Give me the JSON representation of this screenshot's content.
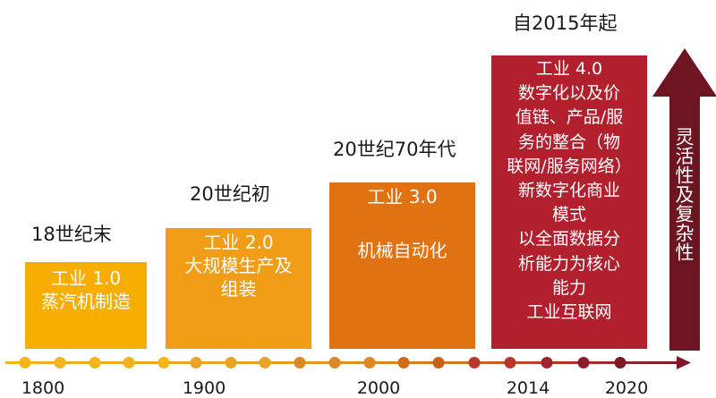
{
  "eras": [
    {
      "period": "18世纪末",
      "lines": [
        "工业 1.0",
        "蒸汽机制造"
      ],
      "color": "#F7AE00"
    },
    {
      "period": "20世纪初",
      "lines": [
        "工业 2.0",
        "大规模生产及",
        "组装"
      ],
      "color": "#F29D17"
    },
    {
      "period": "20世纪70年代",
      "lines": [
        "工业 3.0",
        "机械自动化"
      ],
      "color": "#E17212"
    },
    {
      "period": "自2015年起",
      "lines": [
        "工业 4.0",
        "数字化以及价",
        "值链、产品/服",
        "务的整合（物",
        "联网/服务网络）",
        "新数字化商业",
        "模式",
        "以全面数据分",
        "析能力为核心",
        "能力",
        "工业互联网"
      ],
      "color": "#B2202E"
    }
  ],
  "arrow": {
    "text": "灵活性及复杂性",
    "color": "#6E1522"
  },
  "timeline": {
    "years": [
      "1800",
      "1900",
      "2000",
      "2014",
      "2020"
    ],
    "dot_colors": [
      "#F3B51B",
      "#F3B51B",
      "#F3B51B",
      "#F3B51B",
      "#F3B51B",
      "#E9A427",
      "#E9A427",
      "#E9A427",
      "#DA8828",
      "#DA8828",
      "#DA8828",
      "#D06C1A",
      "#C9611A",
      "#B53A2E",
      "#B53A2E",
      "#A02430",
      "#8E1C2A",
      "#7E1A26"
    ]
  }
}
